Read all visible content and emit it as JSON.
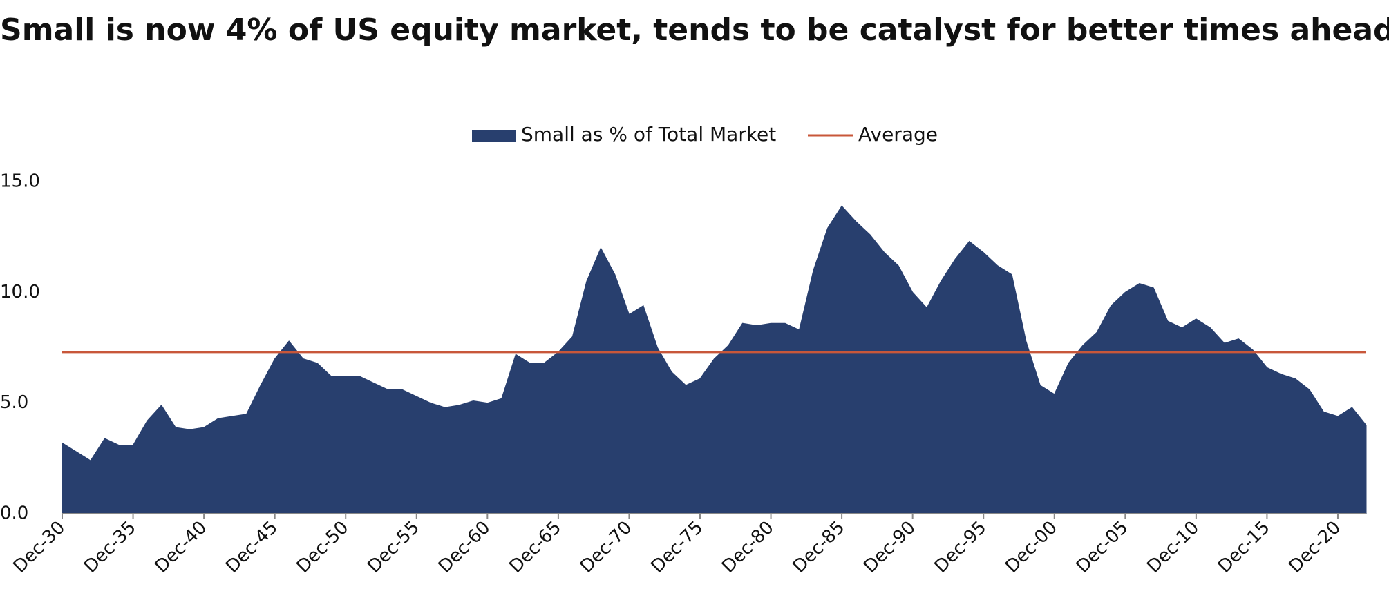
{
  "chart_data": {
    "type": "area",
    "title": "Small is now 4% of US equity market, tends to be catalyst for better times ahead",
    "categories": [
      "Dec-30",
      null,
      null,
      null,
      null,
      "Dec-35",
      null,
      null,
      null,
      null,
      "Dec-40",
      null,
      null,
      null,
      null,
      "Dec-45",
      null,
      null,
      null,
      null,
      "Dec-50",
      null,
      null,
      null,
      null,
      "Dec-55",
      null,
      null,
      null,
      null,
      "Dec-60",
      null,
      null,
      null,
      null,
      "Dec-65",
      null,
      null,
      null,
      null,
      "Dec-70",
      null,
      null,
      null,
      null,
      "Dec-75",
      null,
      null,
      null,
      null,
      "Dec-80",
      null,
      null,
      null,
      null,
      "Dec-85",
      null,
      null,
      null,
      null,
      "Dec-90",
      null,
      null,
      null,
      null,
      "Dec-95",
      null,
      null,
      null,
      null,
      "Dec-00",
      null,
      null,
      null,
      null,
      "Dec-05",
      null,
      null,
      null,
      null,
      "Dec-10",
      null,
      null,
      null,
      null,
      "Dec-15",
      null,
      null,
      null,
      null,
      "Dec-20",
      null,
      null
    ],
    "series": [
      {
        "name": "Small as % of Total Market",
        "color": "#283f6e",
        "values": [
          3.2,
          2.8,
          2.4,
          3.4,
          3.1,
          3.1,
          4.2,
          4.9,
          3.9,
          3.8,
          3.9,
          4.3,
          4.4,
          4.5,
          5.8,
          7.0,
          7.8,
          7.0,
          6.8,
          6.2,
          6.2,
          6.2,
          5.9,
          5.6,
          5.6,
          5.3,
          5.0,
          4.8,
          4.9,
          5.1,
          5.0,
          5.2,
          7.2,
          6.8,
          6.8,
          7.3,
          8.0,
          10.5,
          12.0,
          10.8,
          9.0,
          9.4,
          7.5,
          6.4,
          5.8,
          6.1,
          7.0,
          7.6,
          8.6,
          8.5,
          8.6,
          8.6,
          8.3,
          11.0,
          12.9,
          13.9,
          13.2,
          12.6,
          11.8,
          11.2,
          10.0,
          9.3,
          10.5,
          11.5,
          12.3,
          11.8,
          11.2,
          10.8,
          7.8,
          5.8,
          5.4,
          6.8,
          7.6,
          8.2,
          9.4,
          10.0,
          10.4,
          10.2,
          8.7,
          8.4,
          8.8,
          8.4,
          7.7,
          7.9,
          7.4,
          6.6,
          6.3,
          6.1,
          5.6,
          4.6,
          4.4,
          4.8,
          4.0
        ]
      },
      {
        "name": "Average",
        "color": "#c8573a",
        "value": 7.3
      }
    ],
    "ylim": [
      0,
      15
    ],
    "yticks": [
      {
        "value": 0,
        "label": "0.0"
      },
      {
        "value": 5,
        "label": "5.0"
      },
      {
        "value": 10,
        "label": "10.0"
      },
      {
        "value": 15,
        "label": "15.0"
      }
    ]
  }
}
